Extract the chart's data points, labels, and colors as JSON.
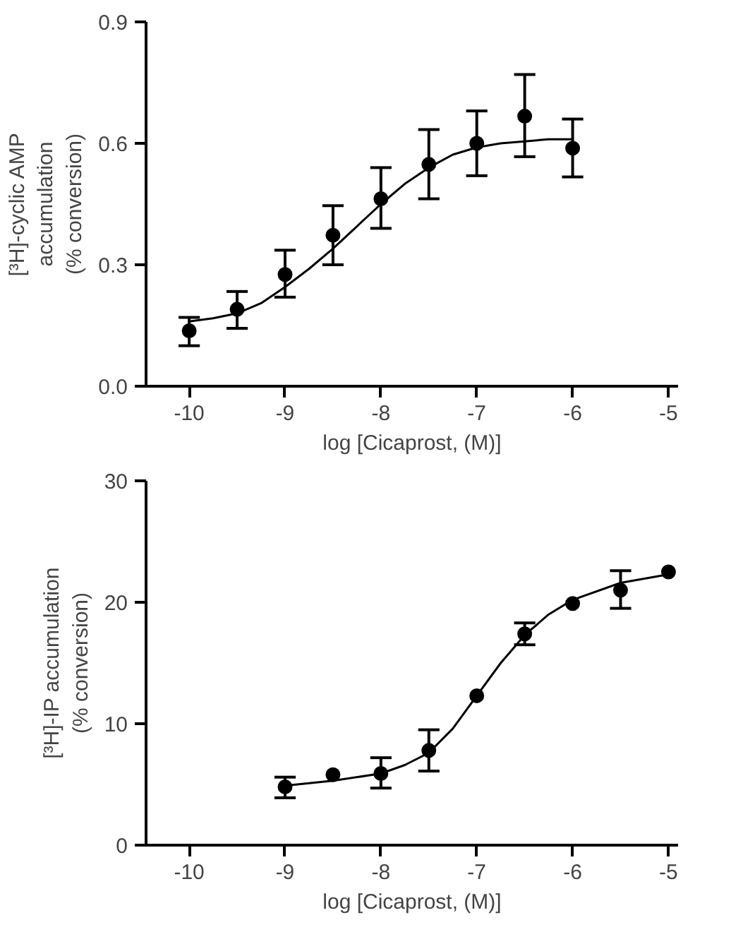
{
  "chart_data": [
    {
      "type": "scatter",
      "xlabel": "log [Cicaprost, (M)]",
      "ylabel": "[³H]-cyclic AMP\naccumulation\n(% conversion)",
      "xlim": [
        -10.45,
        -4.9
      ],
      "xticks": [
        -10,
        -9,
        -8,
        -7,
        -6,
        -5
      ],
      "ylim": [
        0,
        0.9
      ],
      "yticks": [
        {
          "value": 0,
          "label": "0.0"
        },
        0.3,
        0.6,
        0.9
      ],
      "grid": false,
      "series": [
        {
          "marker": "circle",
          "color": "#000000",
          "x": [
            -10,
            -9.5,
            -9,
            -8.5,
            -8,
            -7.5,
            -7,
            -6.5,
            -6
          ],
          "values": [
            0.137,
            0.19,
            0.276,
            0.373,
            0.463,
            0.548,
            0.6,
            0.667,
            0.588
          ],
          "errors": [
            [
              0.1,
              0.17
            ],
            [
              0.143,
              0.234
            ],
            [
              0.22,
              0.336
            ],
            [
              0.3,
              0.446
            ],
            [
              0.39,
              0.54
            ],
            [
              0.463,
              0.634
            ],
            [
              0.52,
              0.68
            ],
            [
              0.567,
              0.77
            ],
            [
              0.517,
              0.66
            ]
          ]
        },
        {
          "type": "line",
          "color": "#000000",
          "x": [
            -10,
            -9.75,
            -9.5,
            -9.25,
            -9,
            -8.75,
            -8.5,
            -8.25,
            -8,
            -7.75,
            -7.5,
            -7.25,
            -7,
            -6.75,
            -6.5,
            -6.25,
            -6
          ],
          "values": [
            0.16,
            0.168,
            0.18,
            0.205,
            0.245,
            0.29,
            0.34,
            0.395,
            0.45,
            0.5,
            0.54,
            0.572,
            0.59,
            0.6,
            0.605,
            0.61,
            0.61
          ]
        }
      ]
    },
    {
      "type": "scatter",
      "xlabel": "log [Cicaprost, (M)]",
      "ylabel": "[³H]-IP accumulation\n(% conversion)",
      "xlim": [
        -10.45,
        -4.9
      ],
      "xticks": [
        -10,
        -9,
        -8,
        -7,
        -6,
        -5
      ],
      "ylim": [
        0,
        30
      ],
      "yticks": [
        0,
        10,
        20,
        30
      ],
      "grid": false,
      "series": [
        {
          "marker": "circle",
          "color": "#000000",
          "x": [
            -9,
            -8.5,
            -8,
            -7.5,
            -7,
            -6.5,
            -6,
            -5.5,
            -5
          ],
          "values": [
            4.8,
            5.8,
            5.9,
            7.8,
            12.3,
            17.4,
            19.9,
            21.0,
            22.5
          ],
          "errors": [
            [
              3.9,
              5.6
            ],
            null,
            [
              4.7,
              7.2
            ],
            [
              6.1,
              9.5
            ],
            null,
            [
              16.5,
              18.3
            ],
            null,
            [
              19.5,
              22.6
            ],
            null
          ]
        },
        {
          "type": "line",
          "color": "#000000",
          "x": [
            -9,
            -8.5,
            -8,
            -7.75,
            -7.5,
            -7.25,
            -7,
            -6.75,
            -6.5,
            -6.25,
            -6,
            -5.5,
            -5
          ],
          "values": [
            4.9,
            5.3,
            5.9,
            6.6,
            7.6,
            9.6,
            12.3,
            15.0,
            17.3,
            19.0,
            20.2,
            21.6,
            22.3
          ]
        }
      ]
    }
  ]
}
